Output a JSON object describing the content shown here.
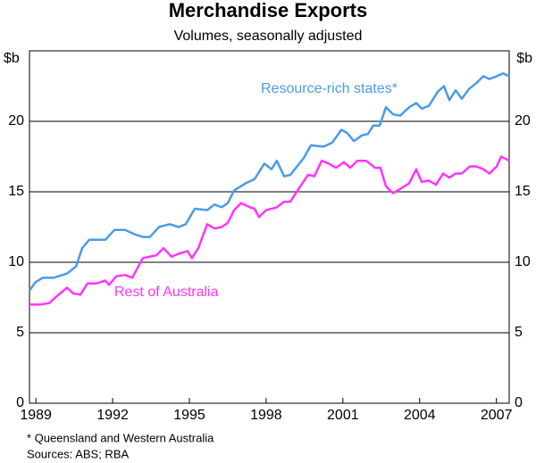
{
  "chart_data": {
    "type": "line",
    "title": "Merchandise Exports",
    "subtitle": "Volumes, seasonally adjusted",
    "y_unit": "$b",
    "footnote": "* Queensland and Western Australia",
    "sources": "Sources: ABS; RBA",
    "xlim": [
      1988.75,
      2007.5
    ],
    "xticks": [
      1989,
      1992,
      1995,
      1998,
      2001,
      2004,
      2007
    ],
    "ylim": [
      0,
      25
    ],
    "yticks": [
      0,
      5,
      10,
      15,
      20
    ],
    "grid": true,
    "series": [
      {
        "name": "Resource-rich states*",
        "color": "#4a9be8",
        "x": [
          1988.75,
          1988.99,
          1989.27,
          1989.69,
          1990.22,
          1990.57,
          1990.81,
          1991.09,
          1991.72,
          1992.07,
          1992.49,
          1992.84,
          1993.18,
          1993.46,
          1993.81,
          1994.23,
          1994.58,
          1994.86,
          1995.21,
          1995.7,
          1995.98,
          1996.26,
          1996.5,
          1996.75,
          1997.2,
          1997.55,
          1997.93,
          1998.21,
          1998.42,
          1998.7,
          1998.95,
          1999.47,
          1999.75,
          2000.24,
          2000.59,
          2000.94,
          2001.15,
          2001.43,
          2001.74,
          2001.98,
          2002.19,
          2002.44,
          2002.68,
          2002.96,
          2003.24,
          2003.59,
          2003.87,
          2004.08,
          2004.36,
          2004.71,
          2004.95,
          2005.16,
          2005.41,
          2005.65,
          2005.93,
          2006.21,
          2006.49,
          2006.73,
          2007.01,
          2007.26,
          2007.5
        ],
        "values": [
          8.0,
          8.6,
          8.9,
          8.9,
          9.2,
          9.7,
          11.0,
          11.6,
          11.6,
          12.3,
          12.3,
          12.0,
          11.8,
          11.8,
          12.5,
          12.7,
          12.5,
          12.7,
          13.8,
          13.7,
          14.1,
          13.9,
          14.2,
          15.1,
          15.6,
          15.9,
          17.0,
          16.6,
          17.2,
          16.1,
          16.2,
          17.4,
          18.3,
          18.2,
          18.5,
          19.4,
          19.2,
          18.6,
          19.0,
          19.1,
          19.7,
          19.7,
          21.0,
          20.5,
          20.4,
          21.0,
          21.3,
          20.9,
          21.1,
          22.1,
          22.5,
          21.5,
          22.2,
          21.6,
          22.3,
          22.7,
          23.2,
          23.0,
          23.2,
          23.4,
          23.2
        ]
      },
      {
        "name": "Rest of Australia",
        "color": "#ff33ff",
        "x": [
          1988.75,
          1989.17,
          1989.52,
          1989.76,
          1990.22,
          1990.46,
          1990.74,
          1991.02,
          1991.37,
          1991.72,
          1991.86,
          1992.14,
          1992.49,
          1992.77,
          1993.18,
          1993.71,
          1993.99,
          1994.3,
          1994.58,
          1994.93,
          1995.1,
          1995.35,
          1995.7,
          1995.98,
          1996.26,
          1996.5,
          1996.75,
          1997.02,
          1997.37,
          1997.55,
          1997.72,
          1998.0,
          1998.42,
          1998.7,
          1998.95,
          1999.3,
          1999.64,
          1999.89,
          2000.17,
          2000.45,
          2000.73,
          2001.04,
          2001.29,
          2001.56,
          2001.91,
          2002.26,
          2002.47,
          2002.68,
          2002.96,
          2003.24,
          2003.59,
          2003.87,
          2004.08,
          2004.36,
          2004.64,
          2004.92,
          2005.16,
          2005.41,
          2005.65,
          2005.96,
          2006.21,
          2006.49,
          2006.73,
          2007.01,
          2007.19,
          2007.5
        ],
        "values": [
          7.0,
          7.0,
          7.1,
          7.5,
          8.2,
          7.8,
          7.7,
          8.5,
          8.5,
          8.7,
          8.4,
          9.0,
          9.1,
          8.9,
          10.3,
          10.5,
          11.0,
          10.4,
          10.6,
          10.8,
          10.3,
          11.0,
          12.7,
          12.4,
          12.5,
          12.8,
          13.7,
          14.2,
          13.9,
          13.8,
          13.2,
          13.7,
          13.9,
          14.3,
          14.3,
          15.3,
          16.2,
          16.1,
          17.2,
          17.0,
          16.7,
          17.1,
          16.7,
          17.2,
          17.2,
          16.7,
          16.7,
          15.4,
          14.9,
          15.2,
          15.6,
          16.6,
          15.7,
          15.8,
          15.5,
          16.3,
          16.0,
          16.3,
          16.3,
          16.8,
          16.8,
          16.6,
          16.3,
          16.8,
          17.5,
          17.2
        ]
      }
    ]
  }
}
